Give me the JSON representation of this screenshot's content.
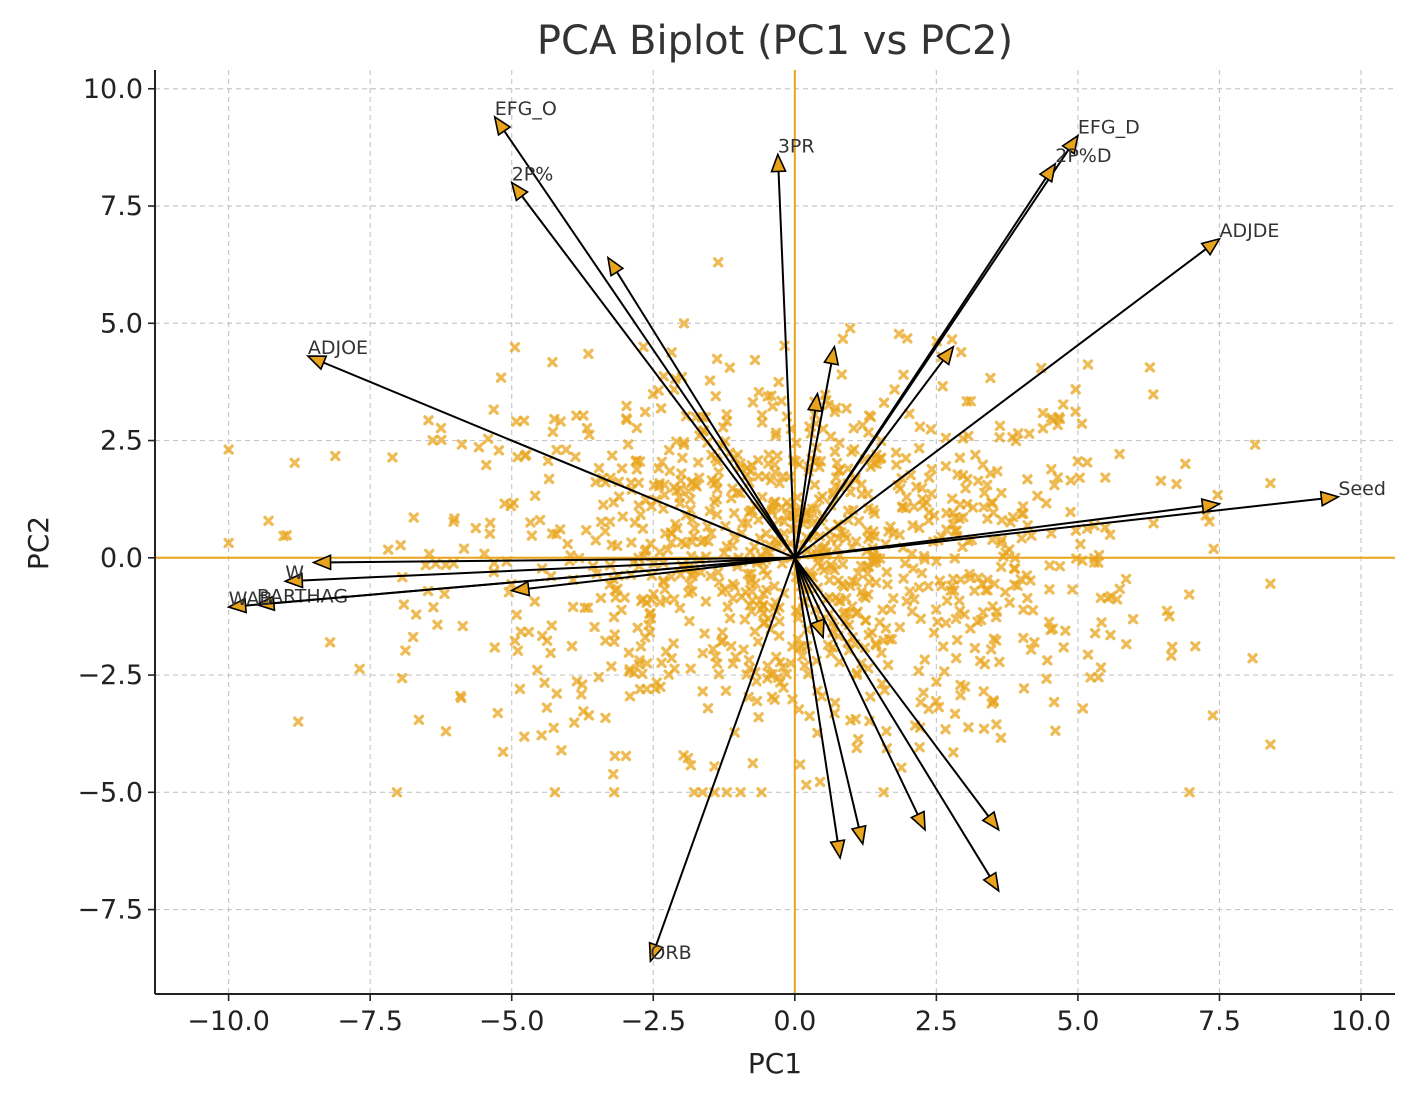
{
  "chart_data": {
    "type": "scatter",
    "title": "PCA Biplot (PC1 vs PC2)",
    "xlabel": "PC1",
    "ylabel": "PC2",
    "xlim": [
      -11.3,
      10.6
    ],
    "ylim": [
      -9.3,
      10.4
    ],
    "x_ticks": [
      -10.0,
      -7.5,
      -5.0,
      -2.5,
      0.0,
      2.5,
      5.0,
      7.5,
      10.0
    ],
    "y_ticks": [
      -7.5,
      -5.0,
      -2.5,
      0.0,
      2.5,
      5.0,
      7.5,
      10.0
    ],
    "x_tick_labels": [
      "−10.0",
      "−7.5",
      "−5.0",
      "−2.5",
      "0.0",
      "2.5",
      "5.0",
      "7.5",
      "10.0"
    ],
    "y_tick_labels": [
      "−7.5",
      "−5.0",
      "−2.5",
      "0.0",
      "2.5",
      "5.0",
      "7.5",
      "10.0"
    ],
    "grid": true,
    "legend": "none",
    "reference_lines": {
      "x": 0,
      "y": 0
    },
    "colors": {
      "points": "#e8a41c",
      "zero_lines": "#e8a41c",
      "arrows": "#000000",
      "arrow_heads": "#e8a41c"
    },
    "scatter_series": {
      "marker": "x",
      "approx_count": 1100,
      "x_std": 3.1,
      "y_std": 2.0,
      "x_range": [
        -10.0,
        8.4
      ],
      "y_range": [
        -5.0,
        6.3
      ]
    },
    "loadings": [
      {
        "label": "EFG_O",
        "x": -5.3,
        "y": 9.4
      },
      {
        "label": "2P%",
        "x": -5.0,
        "y": 8.0
      },
      {
        "label": "3PR",
        "x": -0.3,
        "y": 8.6
      },
      {
        "label": "EFG_D",
        "x": 5.0,
        "y": 9.0
      },
      {
        "label": "2P%D",
        "x": 4.6,
        "y": 8.4
      },
      {
        "label": "ADJDE",
        "x": 7.5,
        "y": 6.8
      },
      {
        "label": "ADJOE",
        "x": -8.6,
        "y": 4.3
      },
      {
        "label": "Seed",
        "x": 9.6,
        "y": 1.3
      },
      {
        "label": "W",
        "x": -9.0,
        "y": -0.5
      },
      {
        "label": "BARTHAG",
        "x": -9.5,
        "y": -1.0
      },
      {
        "label": "WAB",
        "x": -10.0,
        "y": -1.05
      },
      {
        "label": "ORB",
        "x": -2.55,
        "y": -8.6
      },
      {
        "label": "",
        "x": -3.3,
        "y": 6.4
      },
      {
        "label": "",
        "x": 0.4,
        "y": 3.5
      },
      {
        "label": "",
        "x": 0.7,
        "y": 4.5
      },
      {
        "label": "",
        "x": 2.8,
        "y": 4.5
      },
      {
        "label": "",
        "x": 7.5,
        "y": 1.15
      },
      {
        "label": "",
        "x": -8.5,
        "y": -0.1
      },
      {
        "label": "",
        "x": -5.0,
        "y": -0.7
      },
      {
        "label": "",
        "x": 0.5,
        "y": -1.7
      },
      {
        "label": "",
        "x": 0.8,
        "y": -6.4
      },
      {
        "label": "",
        "x": 1.2,
        "y": -6.1
      },
      {
        "label": "",
        "x": 2.3,
        "y": -5.8
      },
      {
        "label": "",
        "x": 3.6,
        "y": -5.8
      },
      {
        "label": "",
        "x": 3.6,
        "y": -7.1
      }
    ]
  }
}
